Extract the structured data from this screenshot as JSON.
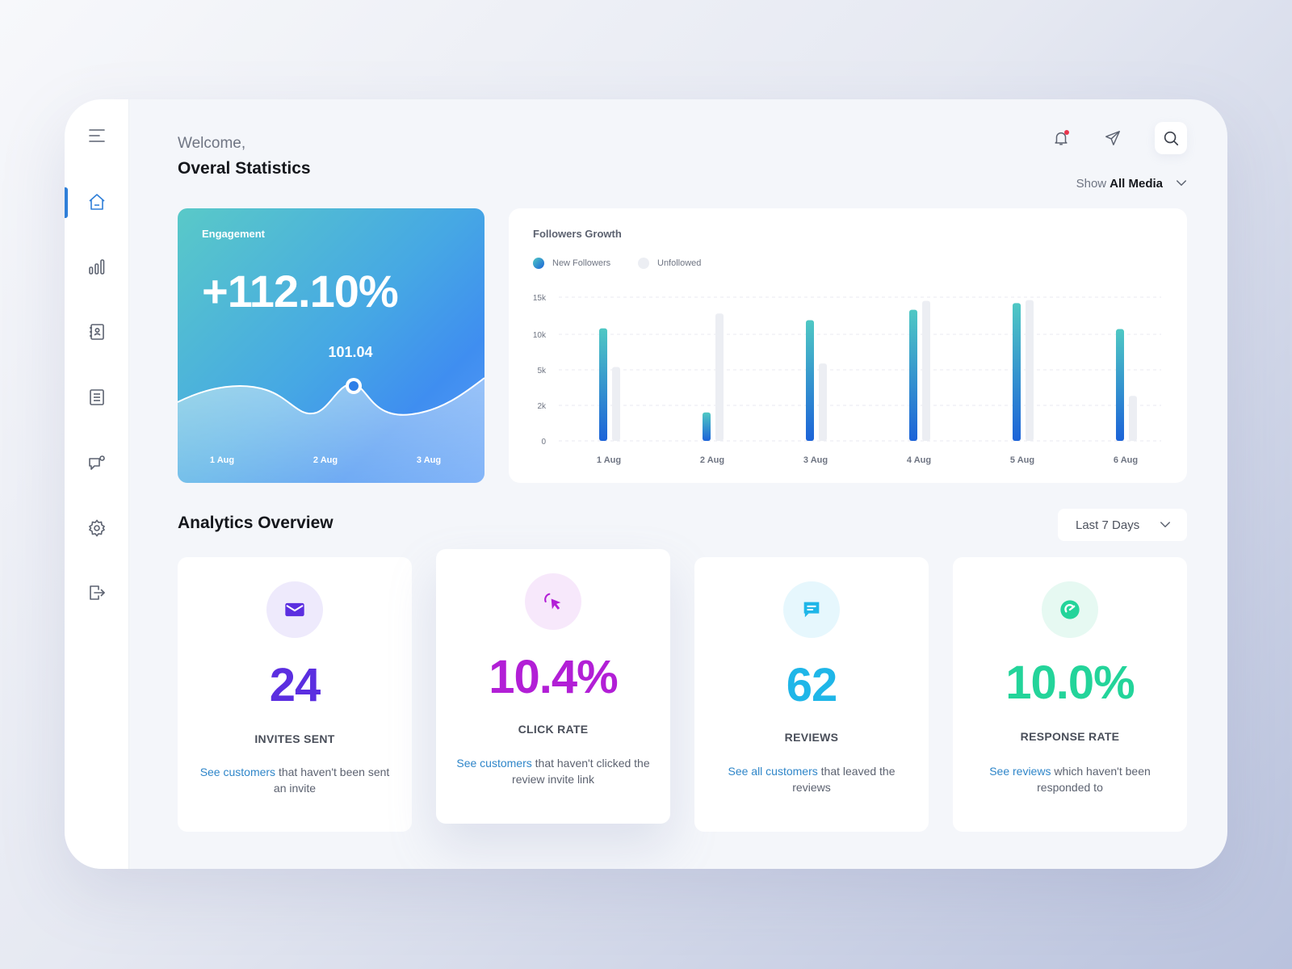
{
  "header": {
    "welcome": "Welcome,",
    "title": "Overal Statistics",
    "show_label": "Show",
    "show_value": "All Media"
  },
  "engagement": {
    "label": "Engagement",
    "value": "+112.10%",
    "point_value": "101.04",
    "x_labels": [
      "1 Aug",
      "2 Aug",
      "3 Aug"
    ]
  },
  "followers": {
    "title": "Followers Growth",
    "legend": [
      "New Followers",
      "Unfollowed"
    ]
  },
  "chart_data": {
    "type": "bar",
    "title": "Followers Growth",
    "categories": [
      "1 Aug",
      "2 Aug",
      "3 Aug",
      "4 Aug",
      "5 Aug",
      "6 Aug"
    ],
    "y_ticks": [
      "0",
      "2k",
      "5k",
      "10k",
      "15k"
    ],
    "tick_values": [
      0,
      2000,
      5000,
      10000,
      15000
    ],
    "series": [
      {
        "name": "New Followers",
        "values": [
          10800,
          1600,
          11900,
          13300,
          14200,
          10700
        ]
      },
      {
        "name": "Unfollowed",
        "values": [
          5400,
          12800,
          5900,
          14500,
          14600,
          2800
        ]
      }
    ],
    "colors": {
      "new_top": "#4fc8c4",
      "new_bottom": "#1c63d8",
      "unfollowed": "#eceef3"
    }
  },
  "analytics": {
    "title": "Analytics Overview",
    "period": "Last 7 Days",
    "cards": [
      {
        "icon": "mail-icon",
        "value": "24",
        "label": "INVITES SENT",
        "link": "See customers",
        "desc": " that haven't been sent an invite",
        "color": "#5b2ee0",
        "bg": "#eeeafc"
      },
      {
        "icon": "cursor-click-icon",
        "value": "10.4%",
        "label": "CLICK RATE",
        "link": "See customers",
        "desc": " that haven't clicked the review invite link",
        "color": "#b21fd6",
        "bg": "#f7e8fb"
      },
      {
        "icon": "chat-icon",
        "value": "62",
        "label": "REVIEWS",
        "link": "See all customers",
        "desc": " that leaved the reviews",
        "color": "#1fb6e8",
        "bg": "#e6f7fd"
      },
      {
        "icon": "response-icon",
        "value": "10.0%",
        "label": "RESPONSE RATE",
        "link": "See reviews",
        "desc": " which haven't been responded to",
        "color": "#23d49a",
        "bg": "#e6f9f2"
      }
    ]
  }
}
